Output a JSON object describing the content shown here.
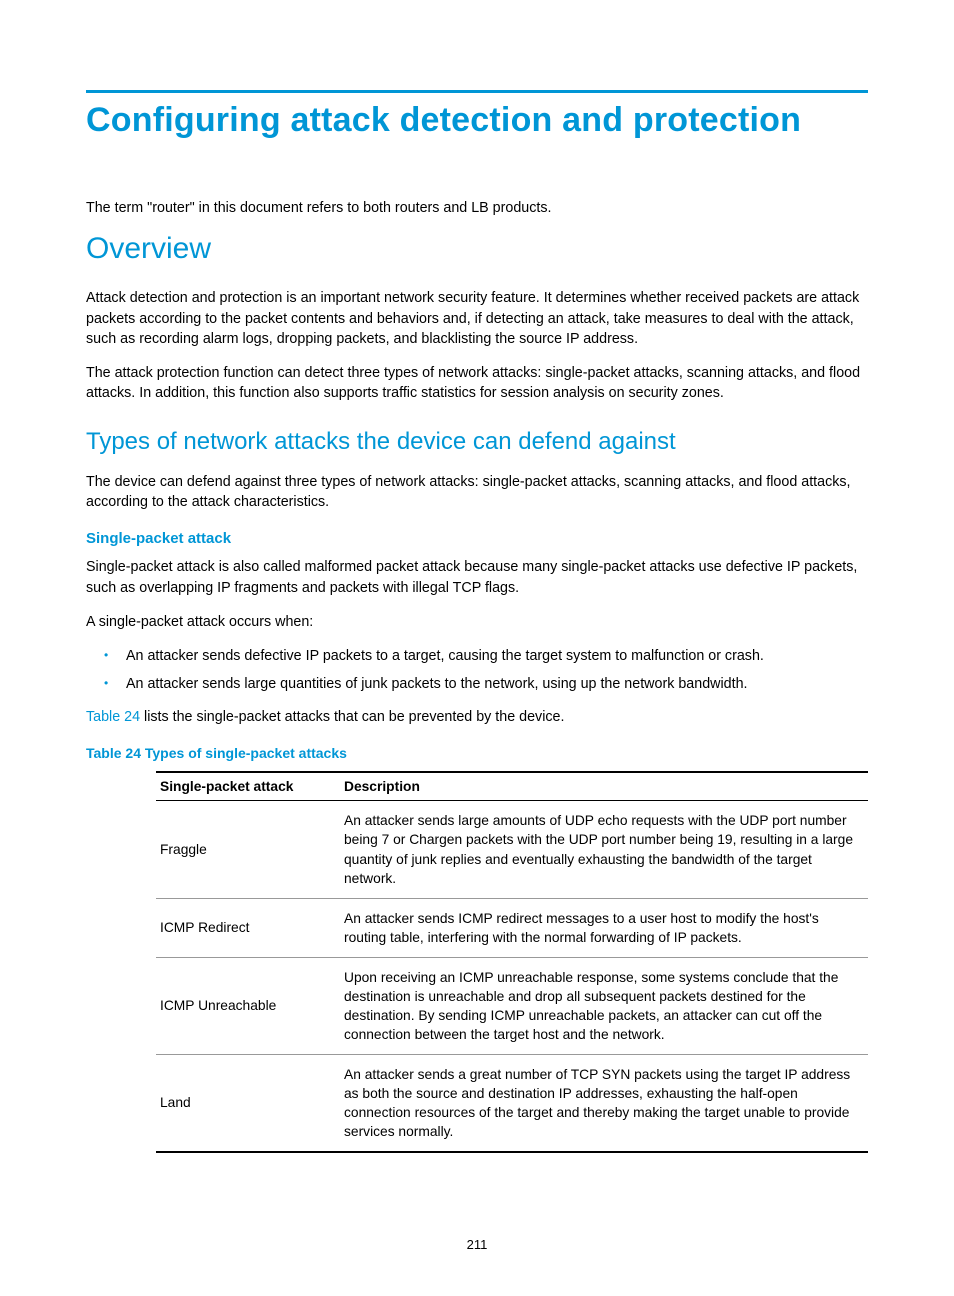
{
  "colors": {
    "accent": "#0096d6",
    "rule": "#0096d6",
    "text": "#000000",
    "bullet": "#0096d6",
    "link": "#0096d6",
    "row_border": "#999999"
  },
  "title": "Configuring attack detection and protection",
  "intro_note": "The term \"router\" in this document refers to both routers and LB products.",
  "overview": {
    "heading": "Overview",
    "p1": "Attack detection and protection is an important network security feature. It determines whether received packets are attack packets according to the packet contents and behaviors and, if detecting an attack, take measures to deal with the attack, such as recording alarm logs, dropping packets, and blacklisting the source IP address.",
    "p2": "The attack protection function can detect three types of network attacks: single-packet attacks, scanning attacks, and flood attacks. In addition, this function also supports traffic statistics for session analysis on security zones."
  },
  "types_section": {
    "heading": "Types of network attacks the device can defend against",
    "intro": "The device can defend against three types of network attacks: single-packet attacks, scanning attacks, and flood attacks, according to the attack characteristics.",
    "single_packet": {
      "heading": "Single-packet attack",
      "p1": "Single-packet attack is also called malformed packet attack because many single-packet attacks use defective IP packets, such as overlapping IP fragments and packets with illegal TCP flags.",
      "p2": "A single-packet attack occurs when:",
      "bullets": [
        "An attacker sends defective IP packets to a target, causing the target system to malfunction or crash.",
        "An attacker sends large quantities of junk packets to the network, using up the network bandwidth."
      ],
      "table_ref_link": "Table 24",
      "table_ref_rest": " lists the single-packet attacks that can be prevented by the device.",
      "table_caption": "Table 24 Types of single-packet attacks",
      "table": {
        "columns": [
          "Single-packet attack",
          "Description"
        ],
        "rows": [
          {
            "name": "Fraggle",
            "desc": "An attacker sends large amounts of UDP echo requests with the UDP port number being 7 or Chargen packets with the UDP port number being 19, resulting in a large quantity of junk replies and eventually exhausting the bandwidth of the target network."
          },
          {
            "name": "ICMP Redirect",
            "desc": "An attacker sends ICMP redirect messages to a user host to modify the host's routing table, interfering with the normal forwarding of IP packets."
          },
          {
            "name": "ICMP Unreachable",
            "desc": "Upon receiving an ICMP unreachable response, some systems conclude that the destination is unreachable and drop all subsequent packets destined for the destination. By sending ICMP unreachable packets, an attacker can cut off the connection between the target host and the network."
          },
          {
            "name": "Land",
            "desc": "An attacker sends a great number of TCP SYN packets using the target IP address as both the source and destination IP addresses, exhausting the half-open connection resources of the target and thereby making the target unable to provide services normally."
          }
        ]
      }
    }
  },
  "page_number": "211"
}
